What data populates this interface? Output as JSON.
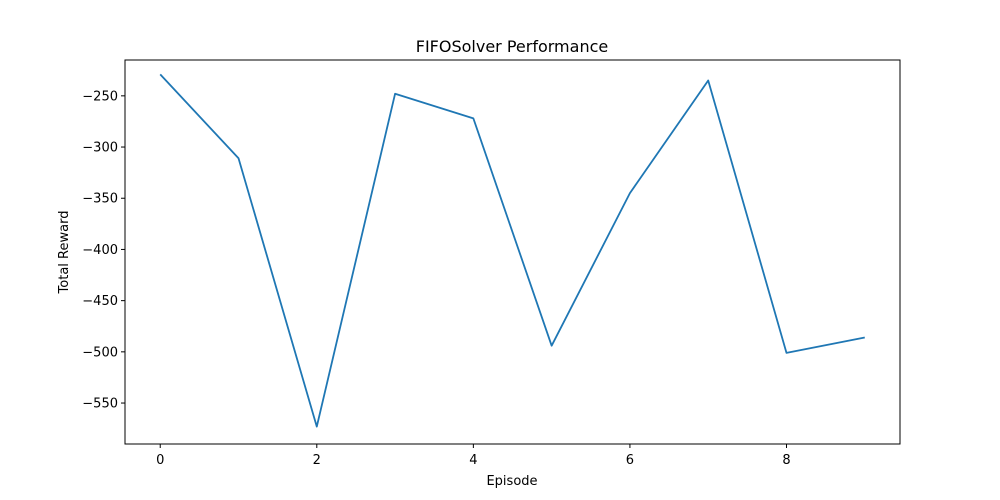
{
  "chart_data": {
    "type": "line",
    "title": "FIFOSolver Performance",
    "xlabel": "Episode",
    "ylabel": "Total Reward",
    "x": [
      0,
      1,
      2,
      3,
      4,
      5,
      6,
      7,
      8,
      9
    ],
    "series": [
      {
        "values": [
          -229,
          -311,
          -573,
          -248,
          -272,
          -494,
          -345,
          -235,
          -501,
          -486
        ],
        "color": "#1f77b4"
      }
    ],
    "xlim": [
      -0.45,
      9.45
    ],
    "ylim": [
      -590,
      -215
    ],
    "xticks": [
      0,
      2,
      4,
      6,
      8
    ],
    "xtick_labels": [
      "0",
      "2",
      "4",
      "6",
      "8"
    ],
    "yticks": [
      -250,
      -300,
      -350,
      -400,
      -450,
      -500,
      -550
    ],
    "ytick_labels": [
      "−250",
      "−300",
      "−350",
      "−400",
      "−450",
      "−500",
      "−550"
    ],
    "grid": false
  }
}
